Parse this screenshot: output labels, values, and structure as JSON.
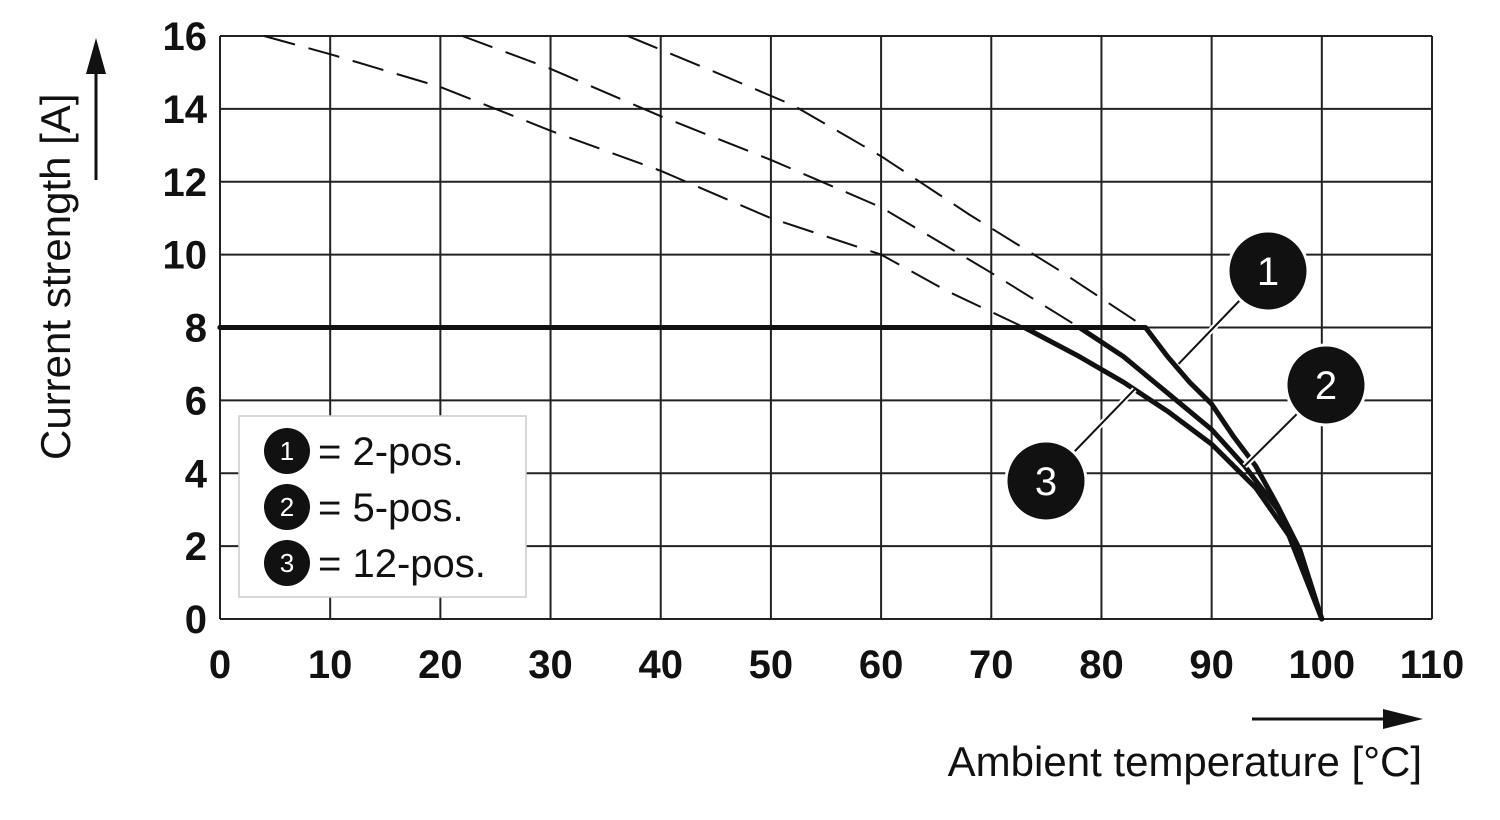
{
  "chart_data": {
    "type": "line",
    "xlabel": "Ambient temperature [°C]",
    "ylabel": "Current strength [A]",
    "xlim": [
      0,
      110
    ],
    "ylim": [
      0,
      16
    ],
    "x_ticks": [
      0,
      10,
      20,
      30,
      40,
      50,
      60,
      70,
      80,
      90,
      100,
      110
    ],
    "y_ticks": [
      0,
      2,
      4,
      6,
      8,
      10,
      12,
      14,
      16
    ],
    "grid": true,
    "legend_position": "bottom-left",
    "colors": {
      "line": "#111111",
      "grid": "#222222",
      "badge": "#111111"
    },
    "legend": [
      {
        "badge": "1",
        "label": "= 2-pos."
      },
      {
        "badge": "2",
        "label": "= 5-pos."
      },
      {
        "badge": "3",
        "label": "= 12-pos."
      }
    ],
    "series": [
      {
        "badge": "1",
        "solid": {
          "x": [
            0,
            84,
            86,
            88,
            90,
            92,
            94,
            96,
            98,
            100
          ],
          "y": [
            8,
            8,
            7.2,
            6.5,
            5.9,
            5.0,
            4.2,
            3.1,
            1.9,
            0
          ]
        },
        "dashed": {
          "x": [
            37,
            45,
            52,
            60,
            68,
            76,
            84
          ],
          "y": [
            16,
            15.0,
            14.1,
            12.7,
            11.1,
            9.6,
            8
          ]
        }
      },
      {
        "badge": "2",
        "solid": {
          "x": [
            0,
            78,
            82,
            86,
            90,
            93,
            96,
            98,
            100
          ],
          "y": [
            8,
            8,
            7.2,
            6.2,
            5.2,
            4.2,
            3.0,
            1.9,
            0
          ]
        },
        "dashed": {
          "x": [
            22,
            30,
            40,
            50,
            60,
            70,
            78
          ],
          "y": [
            16,
            15.1,
            13.8,
            12.6,
            11.3,
            9.5,
            8
          ]
        }
      },
      {
        "badge": "3",
        "solid": {
          "x": [
            0,
            73,
            78,
            82,
            86,
            90,
            94,
            97,
            100
          ],
          "y": [
            8,
            8,
            7.2,
            6.5,
            5.7,
            4.8,
            3.6,
            2.3,
            0
          ]
        },
        "dashed": {
          "x": [
            4,
            10,
            20,
            30,
            40,
            50,
            60,
            66,
            73
          ],
          "y": [
            16,
            15.5,
            14.6,
            13.4,
            12.3,
            11.0,
            10.0,
            9.0,
            8
          ]
        }
      }
    ]
  }
}
